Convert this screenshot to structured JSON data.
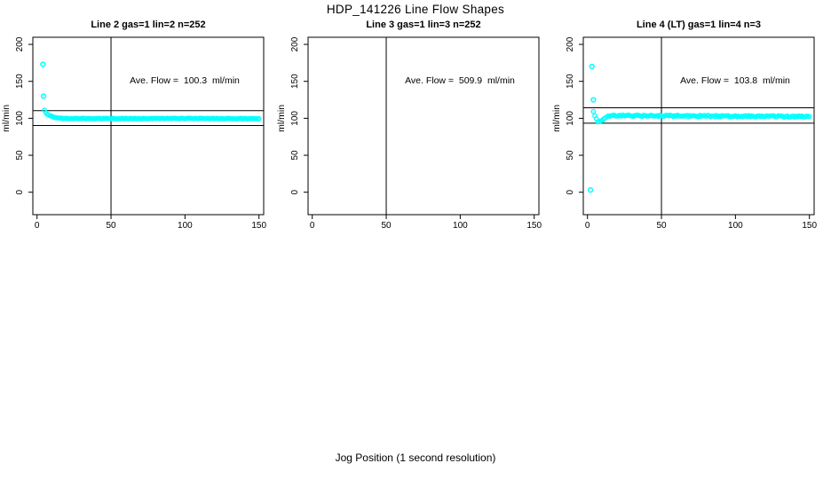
{
  "page": {
    "title": "HDP_141226  Line Flow Shapes",
    "xlabel": "Jog Position (1 second resolution)",
    "background": "#ffffff",
    "foreground": "#000000",
    "point_color": "#00ffff"
  },
  "axes": {
    "xticks": [
      0,
      50,
      100,
      150
    ],
    "yticks": [
      0,
      50,
      100,
      150,
      200
    ],
    "ylabel": "ml/min",
    "xlim": [
      0,
      155
    ],
    "ylim": [
      0,
      200
    ],
    "vline_x": 50,
    "grid": "off",
    "marker": "open-circle"
  },
  "chart_data": [
    {
      "type": "scatter",
      "title": "Line 2 gas=1 lin=2 n=252",
      "annotation": "Ave. Flow =  100.3  ml/min",
      "ave_flow_ml_min": 100.3,
      "n": 252,
      "ref_lines_y": [
        110.3,
        90.3
      ],
      "outliers": [
        [
          4,
          173
        ],
        [
          4.4,
          130
        ]
      ],
      "series_profile": [
        [
          5,
          111
        ],
        [
          6,
          107.5
        ],
        [
          7,
          105.5
        ],
        [
          8,
          104.2
        ],
        [
          10,
          102.4
        ],
        [
          12,
          101.3
        ],
        [
          15,
          100.4
        ],
        [
          20,
          99.9
        ],
        [
          30,
          99.7
        ],
        [
          60,
          99.7
        ],
        [
          100,
          99.8
        ],
        [
          150,
          99.5
        ]
      ],
      "point_spacing_x": 1,
      "jitter": 0.45
    },
    {
      "type": "scatter",
      "title": "Line 3 gas=1 lin=3 n=252",
      "annotation": "Ave. Flow =  509.9  ml/min",
      "ave_flow_ml_min": 509.9,
      "n": 252,
      "ref_lines_y": [],
      "outliers": [],
      "series_profile": [],
      "point_spacing_x": 1,
      "jitter": 0,
      "note_points_above_ylim": true
    },
    {
      "type": "scatter",
      "title": "Line 4 (LT) gas=1 lin=4 n=3",
      "annotation": "Ave. Flow =  103.8  ml/min",
      "ave_flow_ml_min": 103.8,
      "n": 3,
      "ref_lines_y": [
        114.2,
        93.4
      ],
      "outliers": [
        [
          2,
          3
        ],
        [
          3,
          170
        ],
        [
          4,
          125
        ]
      ],
      "series_profile": [
        [
          4,
          110
        ],
        [
          5,
          104
        ],
        [
          6,
          98.5
        ],
        [
          7,
          96
        ],
        [
          8,
          95.3
        ],
        [
          9,
          96.2
        ],
        [
          10,
          97.8
        ],
        [
          12,
          100.8
        ],
        [
          14,
          102.8
        ],
        [
          16,
          103.6
        ],
        [
          30,
          103.5
        ],
        [
          60,
          103.2
        ],
        [
          100,
          102.9
        ],
        [
          150,
          102.2
        ]
      ],
      "point_spacing_x": 1,
      "jitter": 1.0
    }
  ]
}
